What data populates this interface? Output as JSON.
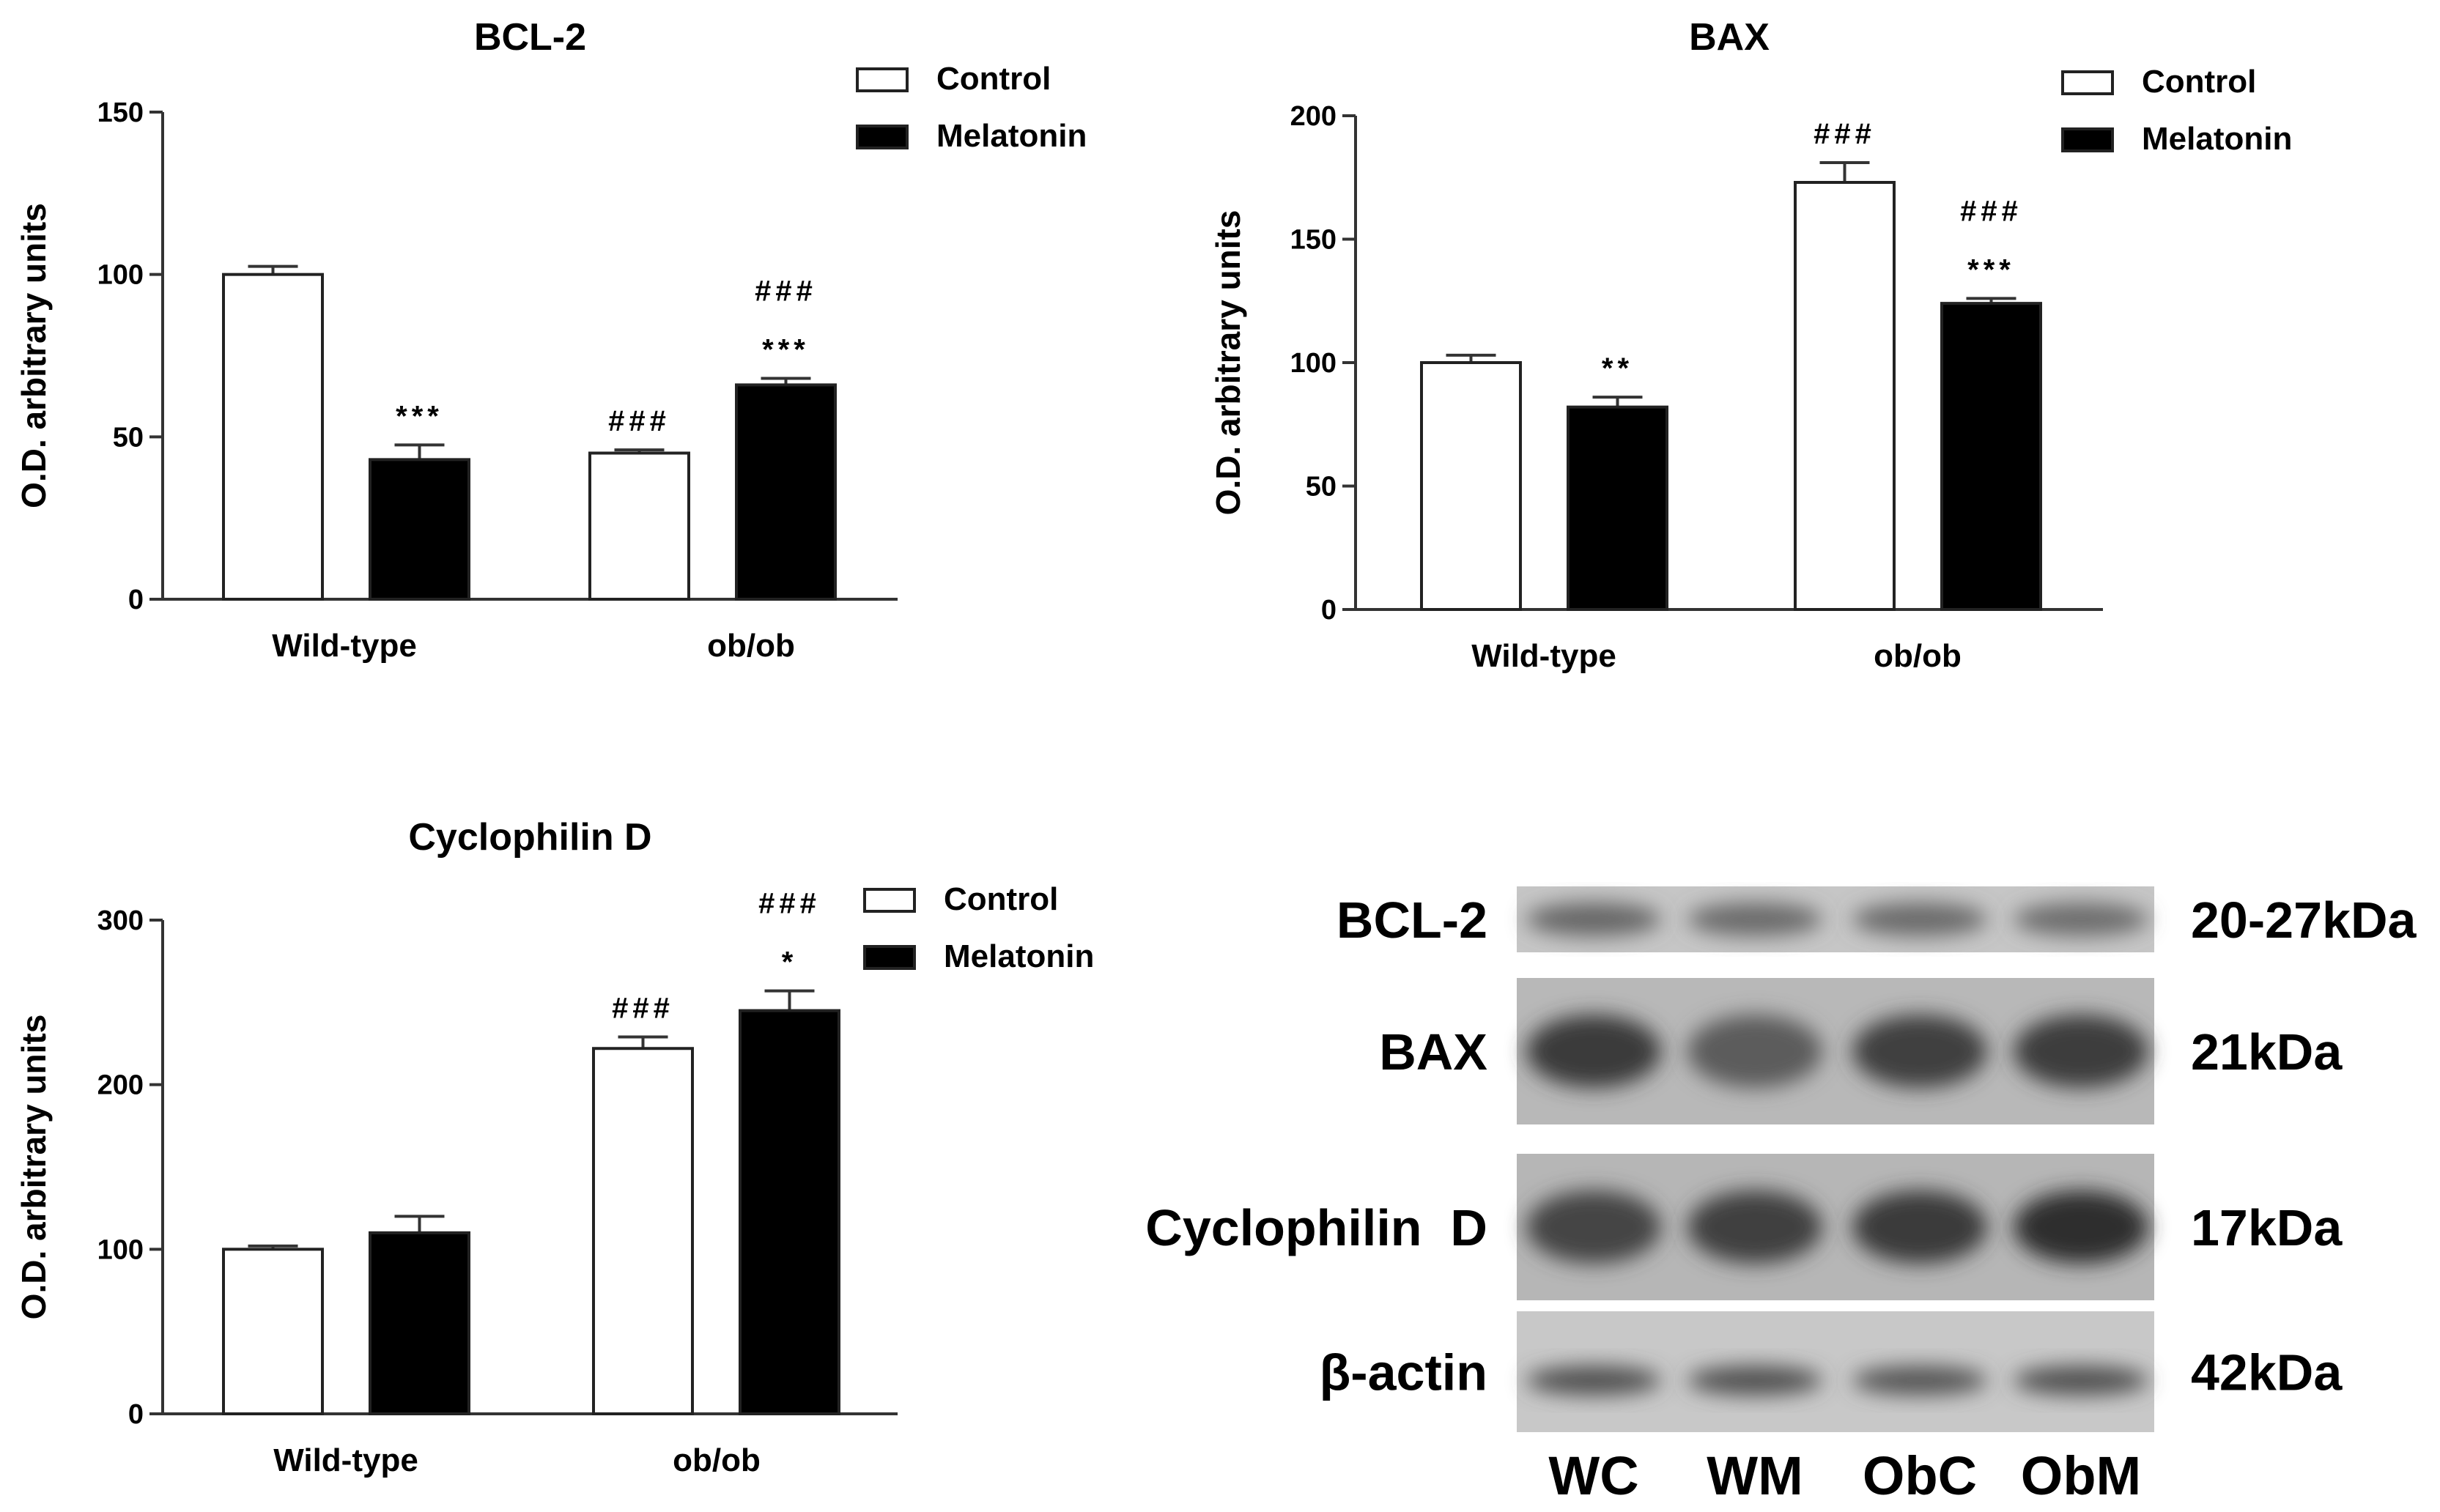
{
  "chart_data": [
    {
      "type": "bar",
      "title": "BCL-2",
      "ylabel": "O.D. arbitrary units",
      "ylim": [
        0,
        150
      ],
      "yticks": [
        0,
        50,
        100,
        150
      ],
      "categories": [
        "Wild-type",
        "ob/ob"
      ],
      "series": [
        {
          "name": "Control",
          "values": [
            100,
            45
          ],
          "errors": [
            2.5,
            1
          ],
          "color": "#ffffff"
        },
        {
          "name": "Melatonin",
          "values": [
            43,
            66
          ],
          "errors": [
            4.5,
            2
          ],
          "color": "#000000"
        }
      ],
      "annotations": [
        {
          "category": 0,
          "series": 1,
          "lines": [
            "***"
          ]
        },
        {
          "category": 1,
          "series": 0,
          "lines": [
            "###"
          ]
        },
        {
          "category": 1,
          "series": 1,
          "lines": [
            "###",
            "***"
          ]
        }
      ],
      "legend": "top-right"
    },
    {
      "type": "bar",
      "title": "BAX",
      "ylabel": "O.D. arbitrary units",
      "ylim": [
        0,
        200
      ],
      "yticks": [
        0,
        50,
        100,
        150,
        200
      ],
      "categories": [
        "Wild-type",
        "ob/ob"
      ],
      "series": [
        {
          "name": "Control",
          "values": [
            100,
            173
          ],
          "errors": [
            3,
            8
          ],
          "color": "#ffffff"
        },
        {
          "name": "Melatonin",
          "values": [
            82,
            124
          ],
          "errors": [
            4,
            2
          ],
          "color": "#000000"
        }
      ],
      "annotations": [
        {
          "category": 0,
          "series": 1,
          "lines": [
            "**"
          ]
        },
        {
          "category": 1,
          "series": 0,
          "lines": [
            "###"
          ]
        },
        {
          "category": 1,
          "series": 1,
          "lines": [
            "###",
            "***"
          ]
        }
      ],
      "legend": "top-right"
    },
    {
      "type": "bar",
      "title": "Cyclophilin D",
      "ylabel": "O.D. arbitrary units",
      "ylim": [
        0,
        300
      ],
      "yticks": [
        0,
        100,
        200,
        300
      ],
      "categories": [
        "Wild-type",
        "ob/ob"
      ],
      "series": [
        {
          "name": "Control",
          "values": [
            100,
            222
          ],
          "errors": [
            2,
            7
          ],
          "color": "#ffffff"
        },
        {
          "name": "Melatonin",
          "values": [
            110,
            245
          ],
          "errors": [
            10,
            12
          ],
          "color": "#000000"
        }
      ],
      "annotations": [
        {
          "category": 1,
          "series": 0,
          "lines": [
            "###"
          ]
        },
        {
          "category": 1,
          "series": 1,
          "lines": [
            "###",
            "*"
          ]
        }
      ],
      "legend": "top-right"
    }
  ],
  "western_blot": {
    "rows": [
      {
        "protein": "BCL-2",
        "size": "20-27kDa"
      },
      {
        "protein": "BAX",
        "size": "21kDa"
      },
      {
        "protein": "Cyclophilin  D",
        "size": "17kDa"
      },
      {
        "protein": "β-actin",
        "size": "42kDa"
      }
    ],
    "lanes": [
      "WC",
      "WM",
      "ObC",
      "ObM"
    ]
  }
}
